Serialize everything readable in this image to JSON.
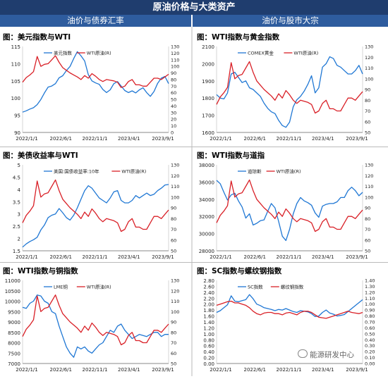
{
  "header": {
    "title": "原油价格与大类资产"
  },
  "sections": {
    "left": "油价与债券汇率",
    "right": "油价与股市大宗"
  },
  "watermark": "能源研发中心",
  "colors": {
    "blue": "#1f77d4",
    "red": "#d92027",
    "header": "#1f3d6e",
    "section": "#2e5c9e"
  },
  "chart_data": [
    {
      "id": "dxy",
      "type": "line",
      "title": "图：美元指数与WTI",
      "x_ticks": [
        "2022/1/1",
        "2022/6/1",
        "2022/11/1",
        "2023/4/1",
        "2023/9/1"
      ],
      "y_left": {
        "min": 90,
        "max": 115,
        "ticks": [
          "90",
          "95",
          "100",
          "105",
          "110",
          "115"
        ]
      },
      "y_right": {
        "min": 0,
        "max": 130,
        "ticks": [
          "0",
          "10",
          "20",
          "30",
          "40",
          "50",
          "60",
          "70",
          "80",
          "90",
          "100",
          "110",
          "120",
          "130"
        ]
      },
      "series": [
        {
          "name": "美元指数",
          "axis": "left",
          "color": "#1f77d4",
          "values": [
            95.9,
            96.3,
            96.8,
            97.2,
            98.1,
            99.6,
            101.5,
            103.2,
            103.5,
            104.2,
            105.9,
            106.5,
            108.0,
            109.2,
            111.5,
            113.5,
            112.3,
            110.8,
            106.8,
            105.0,
            104.4,
            104.0,
            102.5,
            101.6,
            102.4,
            104.2,
            104.8,
            103.5,
            102.2,
            101.6,
            102.1,
            101.5,
            102.4,
            103.0,
            101.6,
            100.5,
            101.9,
            104.3,
            105.8,
            106.3,
            104.2
          ]
        },
        {
          "name": "WTI原油(R)",
          "axis": "right",
          "color": "#d92027",
          "values": [
            76,
            83,
            87,
            92,
            115,
            100,
            103,
            104,
            110,
            116,
            106,
            98,
            94,
            90,
            87,
            84,
            80,
            86,
            82,
            89,
            85,
            80,
            77,
            80,
            79,
            78,
            76,
            68,
            70,
            77,
            80,
            72,
            72,
            70,
            70,
            76,
            82,
            82,
            80,
            84,
            88
          ]
        }
      ]
    },
    {
      "id": "gold",
      "type": "line",
      "title": "图：WTI指数与黄金指数",
      "x_ticks": [
        "2022/1/1",
        "2022/6/1",
        "2022/11/1",
        "2023/4/1",
        "2023/9/1"
      ],
      "y_left": {
        "min": 1600,
        "max": 2100,
        "ticks": [
          "1600",
          "1700",
          "1800",
          "1900",
          "2000",
          "2100"
        ]
      },
      "y_right": {
        "min": 50,
        "max": 130,
        "ticks": [
          "50",
          "60",
          "70",
          "80",
          "90",
          "100",
          "110",
          "120",
          "130"
        ]
      },
      "series": [
        {
          "name": "COMEX黄金",
          "axis": "left",
          "color": "#1f77d4",
          "values": [
            1820,
            1800,
            1795,
            1830,
            1940,
            1950,
            1920,
            1890,
            1900,
            1860,
            1850,
            1830,
            1810,
            1770,
            1740,
            1720,
            1710,
            1670,
            1640,
            1630,
            1660,
            1750,
            1790,
            1810,
            1840,
            1880,
            1930,
            1830,
            1860,
            1980,
            2000,
            2040,
            2030,
            1990,
            1980,
            1960,
            1940,
            1940,
            1960,
            1990,
            1940
          ]
        },
        {
          "name": "WTI原油(R)",
          "axis": "right",
          "color": "#d92027",
          "values": [
            76,
            83,
            87,
            92,
            115,
            100,
            103,
            104,
            110,
            116,
            106,
            98,
            94,
            90,
            87,
            84,
            80,
            86,
            82,
            89,
            85,
            80,
            77,
            80,
            79,
            78,
            76,
            68,
            70,
            77,
            80,
            72,
            72,
            70,
            70,
            76,
            82,
            82,
            80,
            84,
            88
          ]
        }
      ]
    },
    {
      "id": "ust",
      "type": "line",
      "title": "图：美债收益率与WTI",
      "x_ticks": [
        "2022/1/1",
        "2022/6/1",
        "2022/11/1",
        "2023/4/1",
        "2023/9/1"
      ],
      "y_left": {
        "min": 1.5,
        "max": 5,
        "ticks": [
          "1.5",
          "2",
          "2.5",
          "3",
          "3.5",
          "4",
          "4.5",
          "5"
        ]
      },
      "y_right": {
        "min": 50,
        "max": 130,
        "ticks": [
          "50",
          "60",
          "70",
          "80",
          "90",
          "100",
          "110",
          "120",
          "130"
        ]
      },
      "series": [
        {
          "name": "美国:国债收益率:10年",
          "axis": "left",
          "color": "#1f77d4",
          "values": [
            1.65,
            1.78,
            1.88,
            1.95,
            2.05,
            2.35,
            2.55,
            2.85,
            2.95,
            3.0,
            3.22,
            3.05,
            2.85,
            2.75,
            2.95,
            3.25,
            3.6,
            3.95,
            4.15,
            4.05,
            3.85,
            3.65,
            3.55,
            3.45,
            3.65,
            3.9,
            3.95,
            3.55,
            3.45,
            3.45,
            3.55,
            3.75,
            3.65,
            3.75,
            3.85,
            3.75,
            3.8,
            3.95,
            4.05,
            4.18,
            4.2
          ]
        },
        {
          "name": "WTI原油(R)",
          "axis": "right",
          "color": "#d92027",
          "values": [
            76,
            83,
            87,
            92,
            115,
            100,
            103,
            104,
            110,
            116,
            106,
            98,
            94,
            90,
            87,
            84,
            80,
            86,
            82,
            89,
            85,
            80,
            77,
            80,
            79,
            78,
            76,
            68,
            70,
            77,
            80,
            72,
            72,
            70,
            70,
            76,
            82,
            82,
            80,
            84,
            88
          ]
        }
      ]
    },
    {
      "id": "dow",
      "type": "line",
      "title": "图：WTI指数与道指",
      "x_ticks": [
        "2022/1/1",
        "2022/6/1",
        "2022/11/1",
        "2023/4/1",
        "2023/9/1"
      ],
      "y_left": {
        "min": 28000,
        "max": 38000,
        "ticks": [
          "28000",
          "30000",
          "32000",
          "34000",
          "36000",
          "38000"
        ]
      },
      "y_right": {
        "min": 50,
        "max": 130,
        "ticks": [
          "50",
          "60",
          "70",
          "80",
          "90",
          "100",
          "110",
          "120",
          "130"
        ]
      },
      "series": [
        {
          "name": "道琼斯",
          "axis": "left",
          "color": "#1f77d4",
          "values": [
            36200,
            35800,
            34800,
            33900,
            34500,
            34700,
            33800,
            33100,
            31800,
            32300,
            31000,
            31200,
            31500,
            31600,
            32600,
            33500,
            33000,
            31400,
            29700,
            29200,
            30500,
            32300,
            33500,
            34200,
            33800,
            33600,
            33300,
            32400,
            31900,
            33200,
            33400,
            33500,
            33500,
            33700,
            34200,
            34200,
            35000,
            35400,
            35000,
            34400,
            34800
          ]
        },
        {
          "name": "WTI原油(R)",
          "axis": "right",
          "color": "#d92027",
          "values": [
            76,
            83,
            87,
            92,
            115,
            100,
            103,
            104,
            110,
            116,
            106,
            98,
            94,
            90,
            87,
            84,
            80,
            86,
            82,
            89,
            85,
            80,
            77,
            80,
            79,
            78,
            76,
            68,
            70,
            77,
            80,
            72,
            72,
            70,
            70,
            76,
            82,
            82,
            80,
            84,
            88
          ]
        }
      ]
    },
    {
      "id": "copper",
      "type": "line",
      "title": "图：WTI指数与铜指数",
      "x_ticks": [
        "2022/1/1",
        "2022/6/1",
        "2022/11/1",
        "2023/4/1",
        "2023/9/1"
      ],
      "y_left": {
        "min": 7000,
        "max": 11000,
        "ticks": [
          "7000",
          "7500",
          "8000",
          "8500",
          "9000",
          "9500",
          "10000",
          "10500",
          "11000"
        ]
      },
      "y_right": {
        "min": 50,
        "max": 130,
        "ticks": [
          "50",
          "60",
          "70",
          "80",
          "90",
          "100",
          "110",
          "120",
          "130"
        ]
      },
      "series": [
        {
          "name": "LME铜",
          "axis": "left",
          "color": "#1f77d4",
          "values": [
            9700,
            9650,
            9900,
            10000,
            10300,
            10250,
            10000,
            9900,
            9500,
            9400,
            8800,
            8300,
            7800,
            7500,
            7300,
            7800,
            7700,
            7800,
            7600,
            7500,
            7700,
            7900,
            8000,
            8300,
            8600,
            8500,
            8800,
            8900,
            8600,
            8400,
            8200,
            8300,
            8400,
            8350,
            8300,
            8400,
            8500,
            8500,
            8300,
            8400,
            8400
          ]
        },
        {
          "name": "WTI原油(R)",
          "axis": "right",
          "color": "#d92027",
          "values": [
            76,
            83,
            87,
            92,
            115,
            100,
            103,
            104,
            110,
            116,
            106,
            98,
            94,
            90,
            87,
            84,
            80,
            86,
            82,
            89,
            85,
            80,
            77,
            80,
            79,
            78,
            76,
            68,
            70,
            77,
            80,
            72,
            72,
            70,
            70,
            76,
            82,
            82,
            80,
            84,
            88
          ]
        }
      ]
    },
    {
      "id": "rebar",
      "type": "line",
      "title": "图：SC指数与螺纹钢指数",
      "x_ticks": [
        "2022/1/1",
        "2022/6/1",
        "2022/11/1",
        "2023/4/1",
        "2023/9/1"
      ],
      "y_left": {
        "min": 0,
        "max": 2.8,
        "ticks": [
          "0.00",
          "0.20",
          "0.40",
          "0.60",
          "0.80",
          "1.00",
          "1.20",
          "1.40",
          "1.60",
          "1.80",
          "2.00",
          "2.20",
          "2.40",
          "2.60",
          "2.80"
        ]
      },
      "y_right": {
        "min": 0,
        "max": 1.4,
        "ticks": [
          "0.00",
          "0.10",
          "0.20",
          "0.30",
          "0.40",
          "0.50",
          "0.60",
          "0.70",
          "0.80",
          "0.90",
          "1.00",
          "1.10",
          "1.20",
          "1.30",
          "1.40"
        ]
      },
      "series": [
        {
          "name": "SC指数",
          "axis": "left",
          "color": "#1f77d4",
          "values": [
            1.72,
            1.78,
            1.88,
            1.98,
            2.28,
            2.1,
            2.08,
            2.12,
            2.15,
            2.32,
            2.18,
            2.0,
            1.95,
            1.88,
            1.85,
            1.82,
            1.78,
            1.82,
            1.8,
            1.85,
            1.8,
            1.75,
            1.72,
            1.78,
            1.76,
            1.74,
            1.68,
            1.58,
            1.6,
            1.72,
            1.8,
            1.7,
            1.66,
            1.6,
            1.62,
            1.65,
            1.75,
            1.85,
            1.95,
            2.05,
            2.15
          ]
        },
        {
          "name": "螺纹钢指数",
          "axis": "right",
          "color": "#d92027",
          "values": [
            0.98,
            1.0,
            1.02,
            1.04,
            1.05,
            1.02,
            1.02,
            1.0,
            0.98,
            0.94,
            0.88,
            0.84,
            0.82,
            0.85,
            0.86,
            0.86,
            0.84,
            0.84,
            0.82,
            0.85,
            0.86,
            0.84,
            0.82,
            0.86,
            0.88,
            0.88,
            0.86,
            0.82,
            0.78,
            0.77,
            0.76,
            0.78,
            0.8,
            0.82,
            0.84,
            0.86,
            0.88,
            0.86,
            0.85,
            0.84,
            0.86
          ]
        }
      ]
    }
  ]
}
